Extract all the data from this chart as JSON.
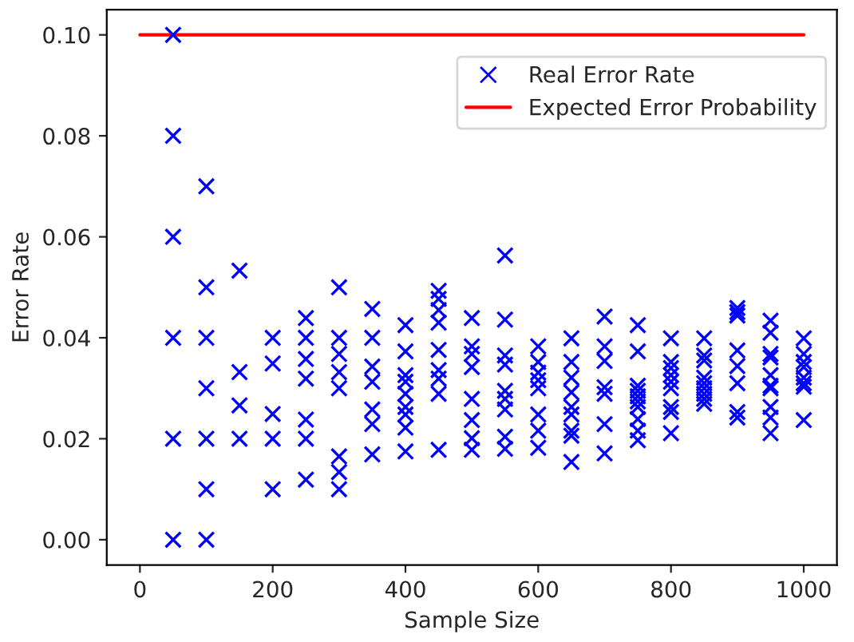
{
  "chart_data": {
    "type": "scatter",
    "xlabel": "Sample Size",
    "ylabel": "Error Rate",
    "xlim": [
      -50,
      1050
    ],
    "ylim": [
      -0.005,
      0.105
    ],
    "xticks": [
      0,
      200,
      400,
      600,
      800,
      1000
    ],
    "yticks": [
      {
        "value": 0,
        "label": "0.00"
      },
      {
        "value": 0.02,
        "label": "0.02"
      },
      {
        "value": 0.04,
        "label": "0.04"
      },
      {
        "value": 0.06,
        "label": "0.06"
      },
      {
        "value": 0.08,
        "label": "0.08"
      },
      {
        "value": 0.1,
        "label": "0.10"
      }
    ],
    "grid": false,
    "legend": "top right",
    "marker": "cross",
    "series": [
      {
        "name": "Real Error Rate",
        "color": "#0000ff",
        "x": [
          50,
          50,
          50,
          50,
          50,
          50,
          100,
          100,
          100,
          100,
          100,
          100,
          100,
          150,
          150,
          150,
          150,
          200,
          200,
          200,
          200,
          200,
          250,
          250,
          250,
          250,
          250,
          250,
          250,
          300,
          300,
          300,
          300,
          300,
          300,
          300,
          300,
          350,
          350,
          350,
          350,
          350,
          350,
          350,
          400,
          400,
          400,
          400,
          400,
          400,
          400,
          400,
          400,
          450,
          450,
          450,
          450,
          450,
          450,
          450,
          450,
          450,
          500,
          500,
          500,
          500,
          500,
          500,
          500,
          500,
          550,
          550,
          550,
          550,
          550,
          550,
          550,
          550,
          550,
          600,
          600,
          600,
          600,
          600,
          600,
          600,
          600,
          650,
          650,
          650,
          650,
          650,
          650,
          650,
          650,
          650,
          700,
          700,
          700,
          700,
          700,
          700,
          700,
          750,
          750,
          750,
          750,
          750,
          750,
          750,
          750,
          750,
          750,
          800,
          800,
          800,
          800,
          800,
          800,
          800,
          800,
          800,
          850,
          850,
          850,
          850,
          850,
          850,
          850,
          850,
          850,
          900,
          900,
          900,
          900,
          900,
          900,
          900,
          900,
          950,
          950,
          950,
          950,
          950,
          950,
          950,
          950,
          950,
          950,
          1000,
          1000,
          1000,
          1000,
          1000,
          1000,
          1000,
          1000
        ],
        "values": [
          0.1,
          0.08,
          0.06,
          0.04,
          0.02,
          0.0,
          0.07,
          0.05,
          0.04,
          0.03,
          0.02,
          0.01,
          0.0,
          0.0533,
          0.0332,
          0.0266,
          0.02,
          0.04,
          0.0349,
          0.0249,
          0.02,
          0.01,
          0.0439,
          0.04,
          0.0358,
          0.0319,
          0.0238,
          0.02,
          0.0119,
          0.05,
          0.04,
          0.0368,
          0.0332,
          0.03,
          0.0165,
          0.0134,
          0.01,
          0.0457,
          0.04,
          0.0343,
          0.0313,
          0.0258,
          0.0229,
          0.0169,
          0.0425,
          0.0373,
          0.0326,
          0.0313,
          0.0289,
          0.0263,
          0.0248,
          0.0222,
          0.0175,
          0.0493,
          0.0477,
          0.0455,
          0.043,
          0.0376,
          0.0336,
          0.0319,
          0.0289,
          0.0178,
          0.0439,
          0.0383,
          0.0368,
          0.0342,
          0.0279,
          0.0237,
          0.0201,
          0.0178,
          0.0563,
          0.0436,
          0.0365,
          0.0347,
          0.0295,
          0.0279,
          0.0258,
          0.0204,
          0.018,
          0.0383,
          0.0352,
          0.0331,
          0.0316,
          0.03,
          0.0248,
          0.0216,
          0.0182,
          0.0399,
          0.0352,
          0.0321,
          0.0292,
          0.0263,
          0.0248,
          0.0216,
          0.0206,
          0.0154,
          0.0442,
          0.0383,
          0.0354,
          0.0302,
          0.0289,
          0.0229,
          0.0171,
          0.0425,
          0.0373,
          0.0305,
          0.0295,
          0.0284,
          0.0274,
          0.0263,
          0.0239,
          0.0216,
          0.0197,
          0.0399,
          0.0352,
          0.034,
          0.0326,
          0.0313,
          0.03,
          0.0263,
          0.0253,
          0.0211,
          0.0399,
          0.0365,
          0.0355,
          0.0321,
          0.031,
          0.03,
          0.0289,
          0.0279,
          0.0269,
          0.0459,
          0.0451,
          0.0444,
          0.0375,
          0.0344,
          0.031,
          0.0253,
          0.0242,
          0.0434,
          0.041,
          0.0368,
          0.0361,
          0.0326,
          0.0305,
          0.03,
          0.0263,
          0.0242,
          0.0211,
          0.0399,
          0.0368,
          0.0352,
          0.0342,
          0.0321,
          0.031,
          0.0303,
          0.0237
        ]
      },
      {
        "name": "Expected Error Probability",
        "type": "line",
        "color": "#ff0000",
        "marker": "none",
        "line_style": "solid",
        "x": [
          0,
          1000
        ],
        "values": [
          0.1,
          0.1
        ]
      }
    ]
  }
}
